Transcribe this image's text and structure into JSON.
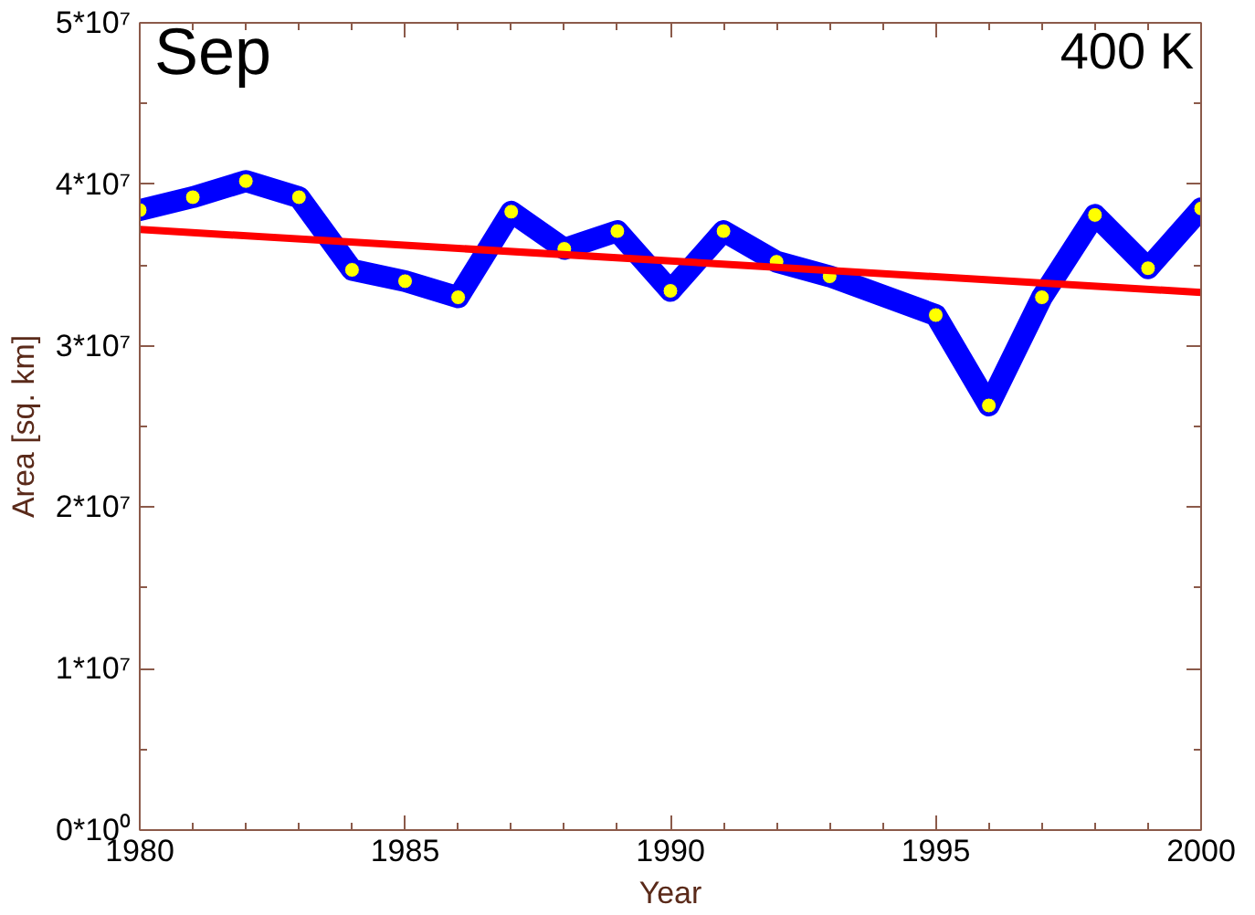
{
  "chart_data": {
    "type": "line",
    "xlabel": "Year",
    "ylabel": "Area [sq. km]",
    "annotations": [
      "Sep",
      "400 K"
    ],
    "xlim": [
      1980,
      2000
    ],
    "xticks": [
      1980,
      1985,
      1990,
      1995,
      2000
    ],
    "ylim": [
      0,
      50000000
    ],
    "yticks": [
      {
        "value": 0,
        "label": "0*10⁰"
      },
      {
        "value": 10000000,
        "label": "1*10⁷"
      },
      {
        "value": 20000000,
        "label": "2*10⁷"
      },
      {
        "value": 30000000,
        "label": "3*10⁷"
      },
      {
        "value": 40000000,
        "label": "4*10⁷"
      },
      {
        "value": 50000000,
        "label": "5*10⁷"
      }
    ],
    "grid": false,
    "series": [
      {
        "color": "#0000ff",
        "marker": "circle",
        "x": [
          1980,
          1981,
          1982,
          1983,
          1984,
          1985,
          1986,
          1987,
          1988,
          1989,
          1990,
          1991,
          1992,
          1993,
          1995,
          1996,
          1997,
          1998,
          1999,
          2000
        ],
        "values": [
          38400000,
          39200000,
          40200000,
          39200000,
          34700000,
          34000000,
          33000000,
          38300000,
          36000000,
          37100000,
          33400000,
          37100000,
          35200000,
          34300000,
          31900000,
          26300000,
          33000000,
          38100000,
          34800000,
          38500000
        ]
      },
      {
        "color": "#ff0000",
        "marker": "none",
        "x": [
          1980,
          2000
        ],
        "values": [
          37200000,
          33300000
        ]
      }
    ]
  }
}
